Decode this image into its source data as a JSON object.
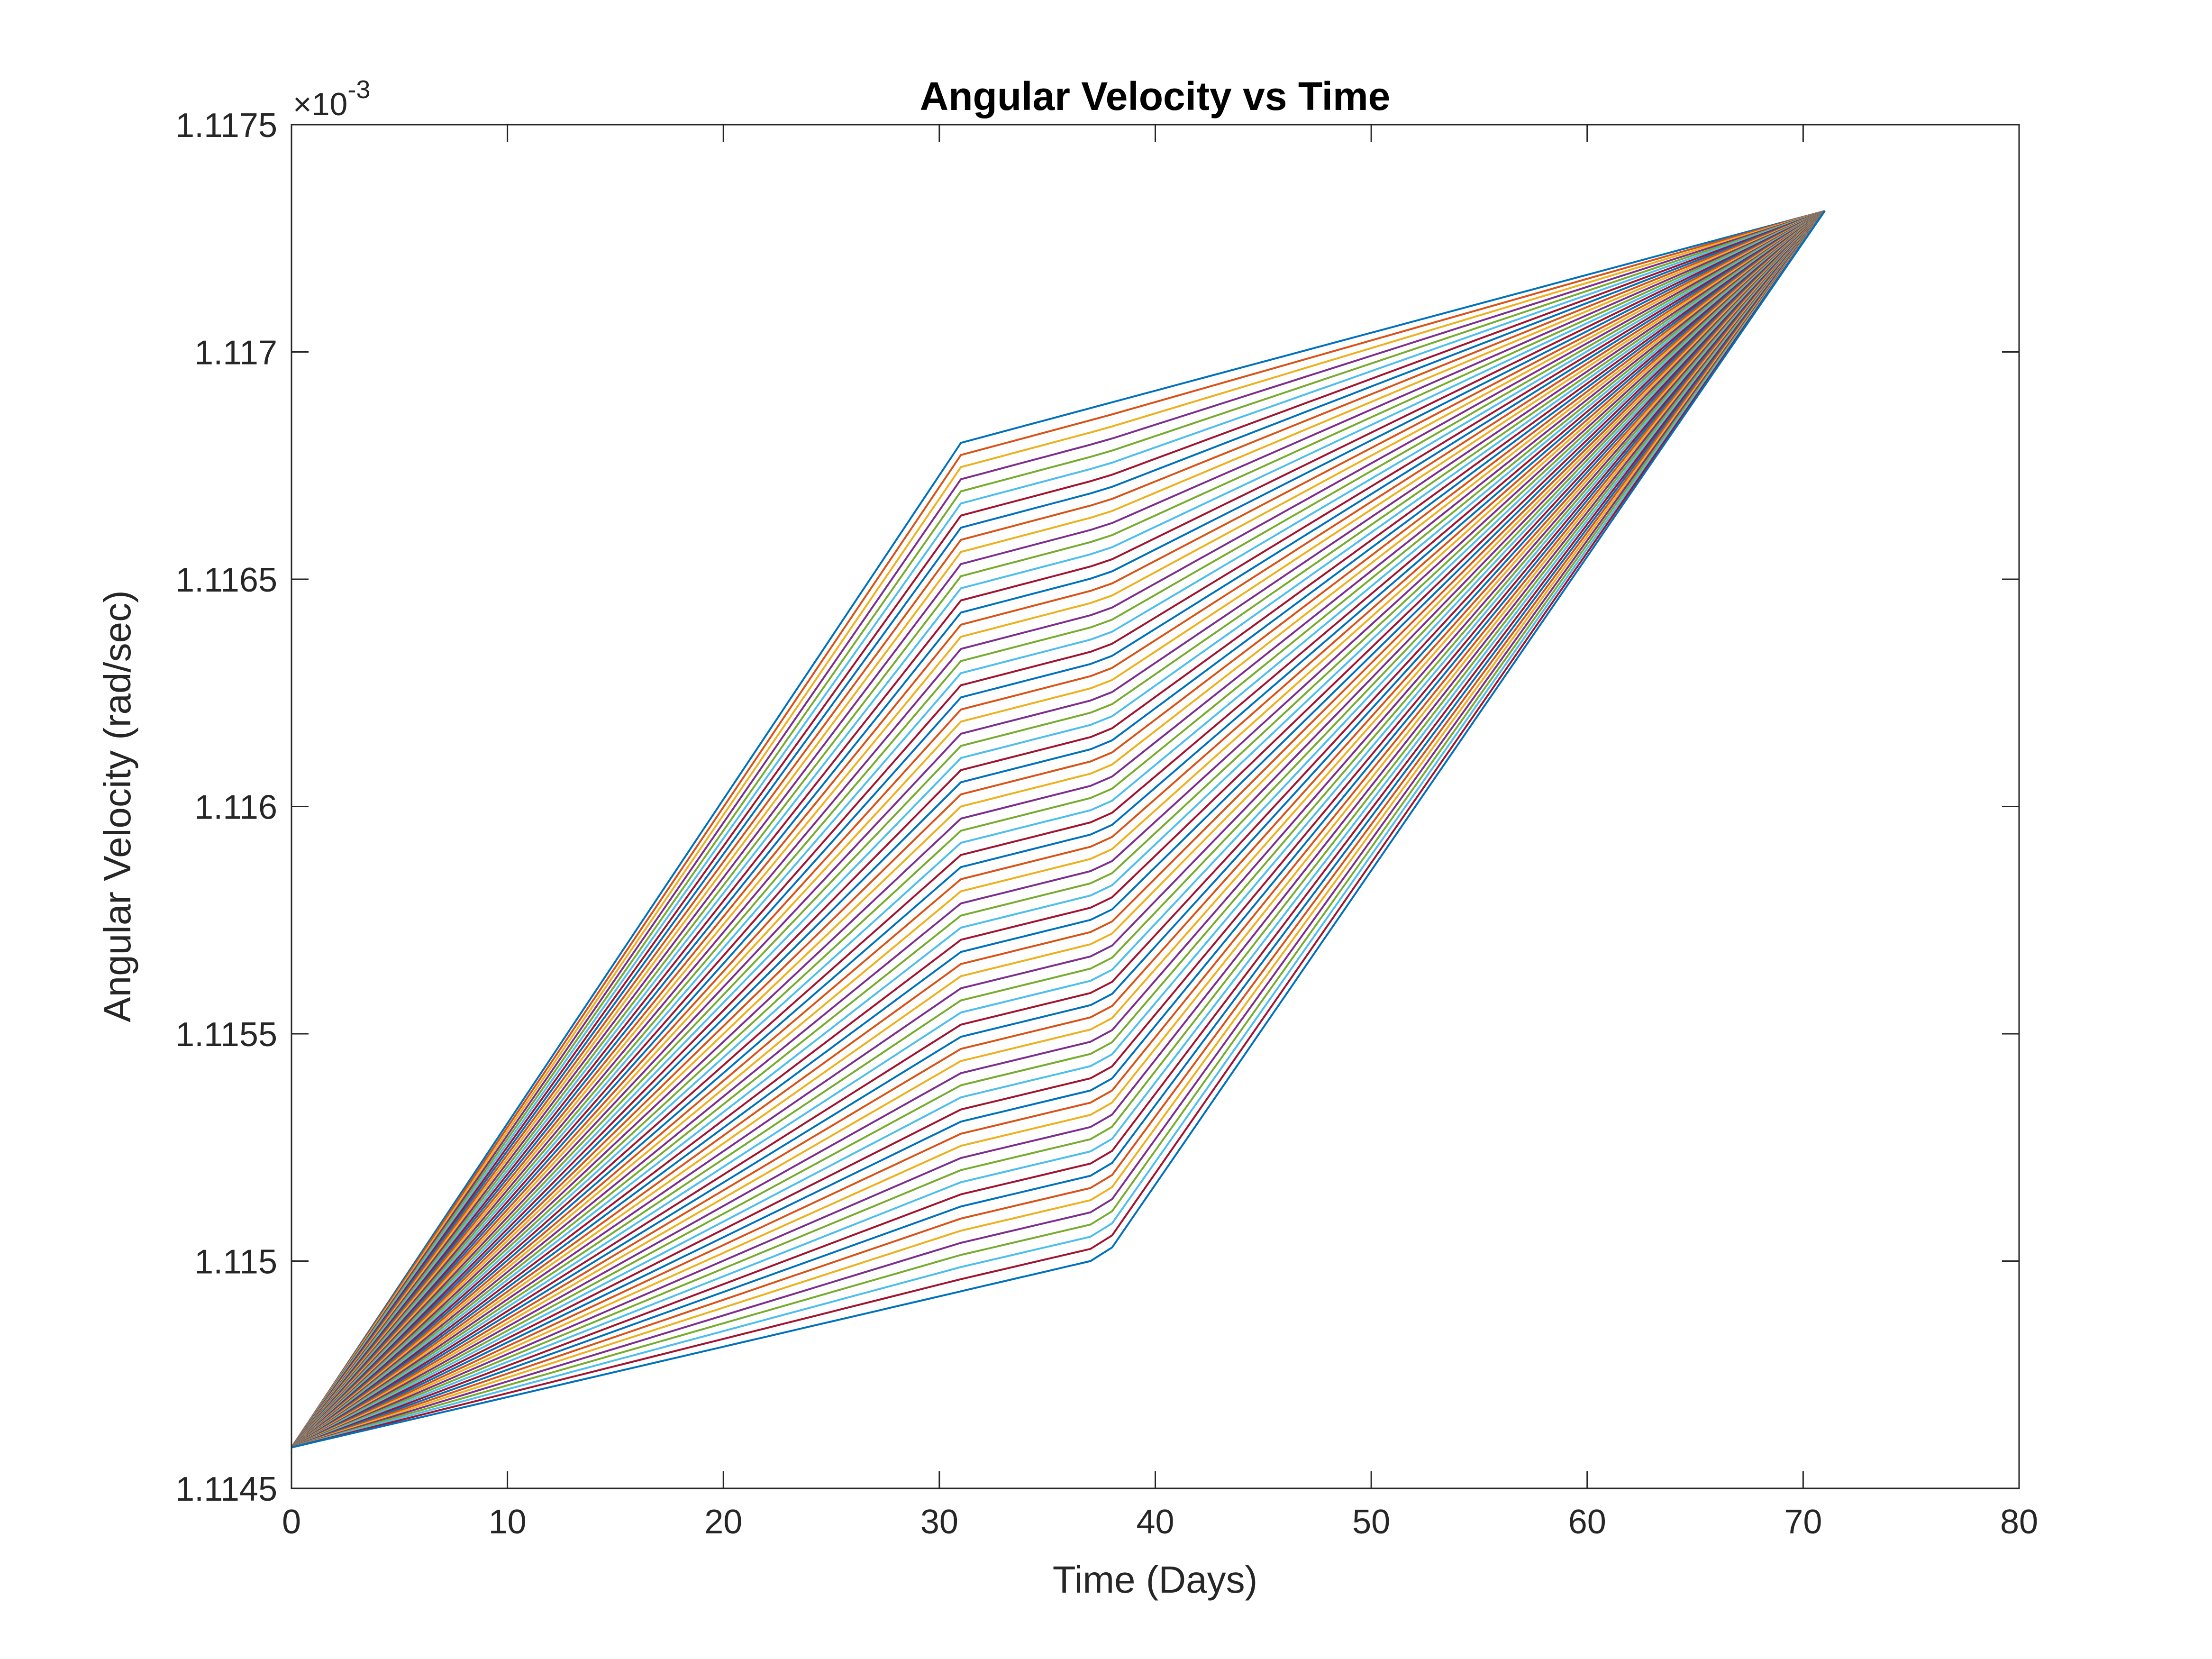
{
  "chart_data": {
    "type": "line",
    "title": "Angular Velocity vs Time",
    "xlabel": "Time (Days)",
    "ylabel": "Angular Velocity (rad/sec)",
    "xlim": [
      0,
      80
    ],
    "ylim": [
      1.1145,
      1.1175
    ],
    "y_multiplier": "×10",
    "y_multiplier_exponent": "-3",
    "x_ticks": [
      0,
      10,
      20,
      30,
      40,
      50,
      60,
      70,
      80
    ],
    "y_ticks": [
      1.1145,
      1.115,
      1.1155,
      1.116,
      1.1165,
      1.117,
      1.1175
    ],
    "x_tick_labels": [
      "0",
      "10",
      "20",
      "30",
      "40",
      "50",
      "60",
      "70",
      "80"
    ],
    "y_tick_labels": [
      "1.1145",
      "1.115",
      "1.1155",
      "1.116",
      "1.1165",
      "1.117",
      "1.1175"
    ],
    "grid": false,
    "series_colors": [
      "#0072BD",
      "#D95319",
      "#EDB120",
      "#7E2F8E",
      "#77AC30",
      "#4DBEEE",
      "#A2142F"
    ],
    "family": {
      "count": 71,
      "start": [
        0,
        1.11459
      ],
      "end": [
        71,
        1.11731
      ],
      "upper_envelope": [
        [
          0,
          1.11459
        ],
        [
          31,
          1.1168
        ],
        [
          71,
          1.11731
        ]
      ],
      "lower_envelope": [
        [
          0,
          1.11459
        ],
        [
          37,
          1.115
        ],
        [
          38,
          1.11503
        ],
        [
          71,
          1.11731
        ]
      ]
    }
  }
}
